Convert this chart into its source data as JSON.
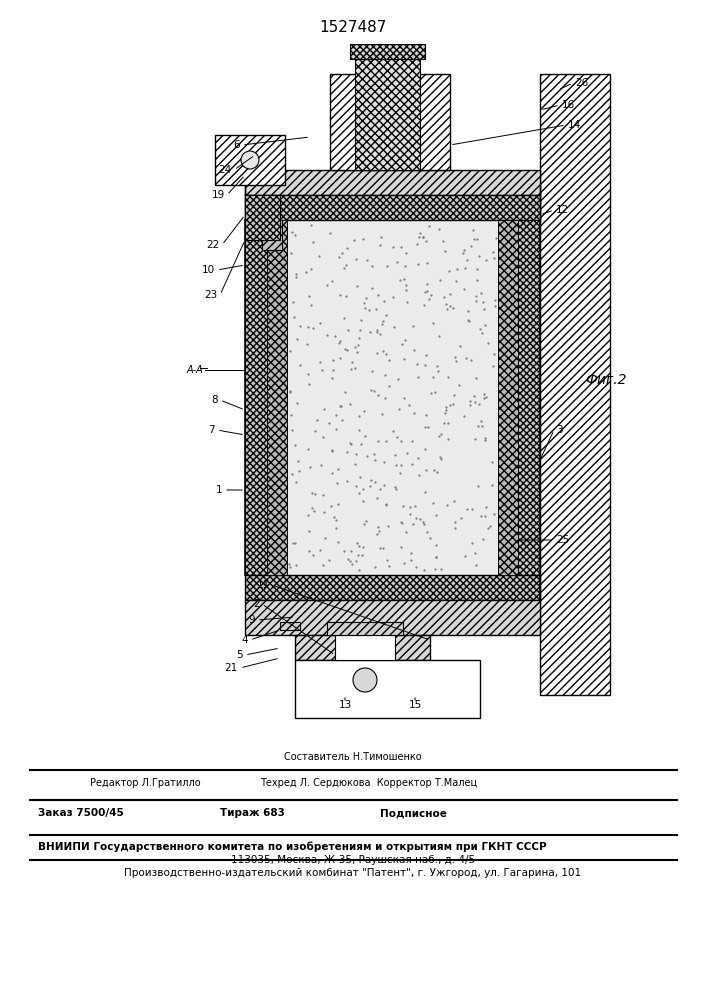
{
  "title": "1527487",
  "fig_label": "Фиг.2",
  "bg_color": "#ffffff",
  "footer_sestavitel": "Составитель Н.Тимошенко",
  "footer_redaktor": "Редактор Л.Гратилло",
  "footer_tehred": "Техред Л. Сердюкова  Корректор Т.Малец",
  "footer_zakaz": "Заказ 7500/45",
  "footer_tirazh": "Тираж 683",
  "footer_podpisnoe": "Подписное",
  "footer_vniip": "ВНИИПИ Государственного комитета по изобретениям и открытиям при ГКНТ СССР",
  "footer_addr": "113035, Москва, Ж-35, Раушская наб., д. 4/5",
  "footer_patent": "Производственно-издательский комбинат \"Патент\", г. Ужгород, ул. Гагарина, 101"
}
